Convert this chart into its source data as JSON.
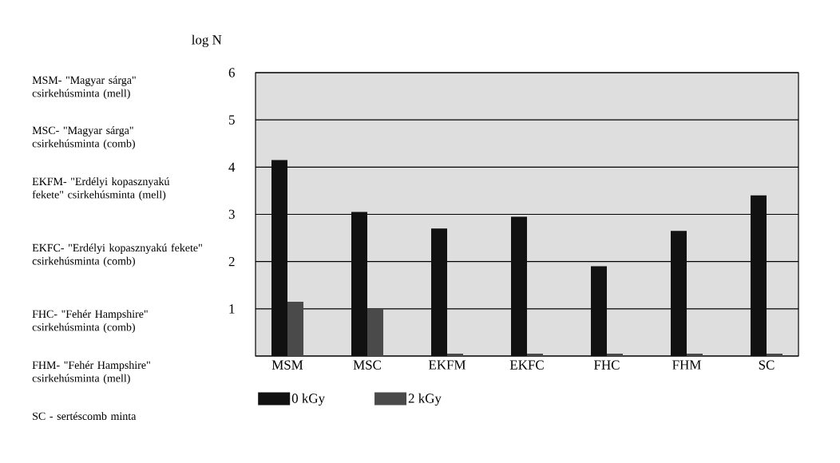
{
  "chart_data": {
    "type": "bar",
    "ylabel": "log N",
    "categories": [
      "MSM",
      "MSC",
      "EKFM",
      "EKFC",
      "FHC",
      "FHM",
      "SC"
    ],
    "series": [
      {
        "name": "0 kGy",
        "color": "#111111",
        "values": [
          4.15,
          3.05,
          2.7,
          2.95,
          1.9,
          2.65,
          3.4
        ]
      },
      {
        "name": "2 kGy",
        "color": "#4a4a4a",
        "values": [
          1.15,
          1.0,
          0.05,
          0.05,
          0.05,
          0.05,
          0.05
        ]
      }
    ],
    "ylim": [
      0,
      6
    ],
    "yticks": [
      {
        "value": 0,
        "label": null
      },
      1,
      2,
      3,
      4,
      5,
      6
    ],
    "grid": "y",
    "legend": "bottom",
    "annotations": [
      "MSM- \"Magyar sárga\" csirkehúsminta (mell)",
      "MSC- \"Magyar sárga\" csirkehúsminta (comb)",
      "EKFM- \"Erdélyi kopasznyakú fekete\" csirkehúsminta (mell)",
      "EKFC- \"Erdélyi kopasznyakú fekete\" csirkehúsminta (comb)",
      "FHC- \"Fehér Hampshire\" csirkehúsminta (comb)",
      "FHM- \"Fehér Hampshire\" csirkehúsminta (mell)",
      "SC - sertéscomb minta"
    ]
  }
}
